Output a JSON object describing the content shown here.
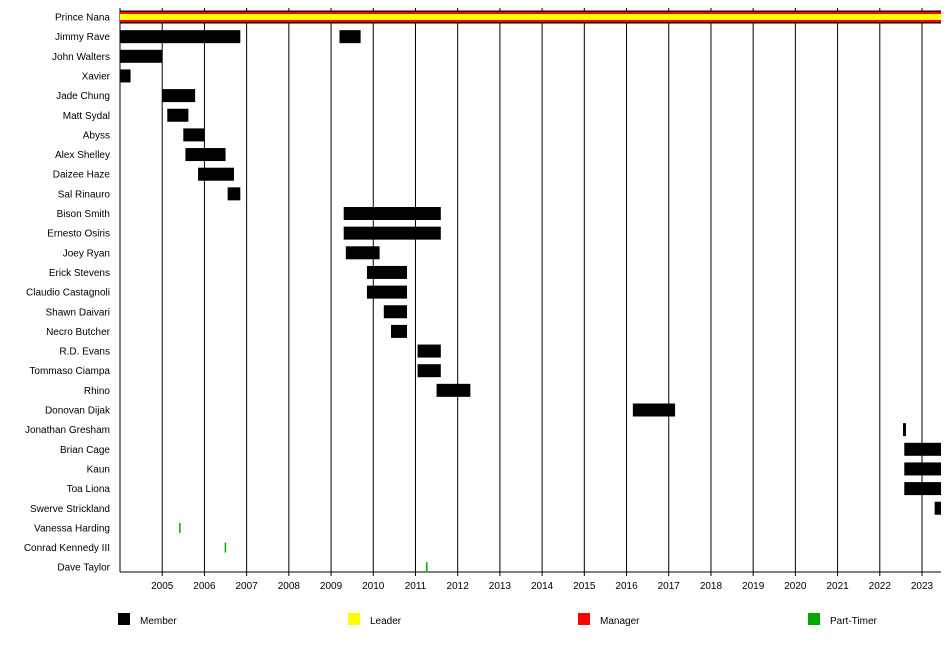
{
  "chart_data": {
    "type": "timeline",
    "xlim": [
      2004.0,
      2023.45
    ],
    "ticks": [
      "2005",
      "2006",
      "2007",
      "2008",
      "2009",
      "2010",
      "2011",
      "2012",
      "2013",
      "2014",
      "2015",
      "2016",
      "2017",
      "2018",
      "2019",
      "2020",
      "2021",
      "2022",
      "2023"
    ],
    "colors": {
      "Member": "#000000",
      "Leader": "#ffff00",
      "Manager": "#ff0000",
      "Part-Timer": "#00aa00"
    },
    "legend": [
      "Member",
      "Leader",
      "Manager",
      "Part-Timer"
    ],
    "rows": [
      {
        "name": "Prince Nana",
        "segments": [
          {
            "role": "Manager",
            "start": 2004.0,
            "end": 2023.45
          }
        ]
      },
      {
        "name": "Jimmy Rave",
        "segments": [
          {
            "role": "Member",
            "start": 2004.0,
            "end": 2006.85
          },
          {
            "role": "Member",
            "start": 2009.2,
            "end": 2009.7
          }
        ]
      },
      {
        "name": "John Walters",
        "segments": [
          {
            "role": "Member",
            "start": 2004.0,
            "end": 2005.0
          }
        ]
      },
      {
        "name": "Xavier",
        "segments": [
          {
            "role": "Member",
            "start": 2004.0,
            "end": 2004.25
          }
        ]
      },
      {
        "name": "Jade Chung",
        "segments": [
          {
            "role": "Member",
            "start": 2005.0,
            "end": 2005.78
          }
        ]
      },
      {
        "name": "Matt Sydal",
        "segments": [
          {
            "role": "Member",
            "start": 2005.12,
            "end": 2005.62
          }
        ]
      },
      {
        "name": "Abyss",
        "segments": [
          {
            "role": "Member",
            "start": 2005.5,
            "end": 2006.0
          }
        ]
      },
      {
        "name": "Alex Shelley",
        "segments": [
          {
            "role": "Member",
            "start": 2005.55,
            "end": 2006.5
          }
        ]
      },
      {
        "name": "Daizee Haze",
        "segments": [
          {
            "role": "Member",
            "start": 2005.85,
            "end": 2006.7
          }
        ]
      },
      {
        "name": "Sal Rinauro",
        "segments": [
          {
            "role": "Member",
            "start": 2006.55,
            "end": 2006.85
          }
        ]
      },
      {
        "name": "Bison Smith",
        "segments": [
          {
            "role": "Member",
            "start": 2009.3,
            "end": 2011.6
          }
        ]
      },
      {
        "name": "Ernesto Osiris",
        "segments": [
          {
            "role": "Member",
            "start": 2009.3,
            "end": 2011.6
          }
        ]
      },
      {
        "name": "Joey Ryan",
        "segments": [
          {
            "role": "Member",
            "start": 2009.35,
            "end": 2010.15
          }
        ]
      },
      {
        "name": "Erick Stevens",
        "segments": [
          {
            "role": "Member",
            "start": 2009.85,
            "end": 2010.8
          }
        ]
      },
      {
        "name": "Claudio Castagnoli",
        "segments": [
          {
            "role": "Member",
            "start": 2009.85,
            "end": 2010.8
          }
        ]
      },
      {
        "name": "Shawn Daivari",
        "segments": [
          {
            "role": "Member",
            "start": 2010.25,
            "end": 2010.8
          }
        ]
      },
      {
        "name": "Necro Butcher",
        "segments": [
          {
            "role": "Member",
            "start": 2010.42,
            "end": 2010.8
          }
        ]
      },
      {
        "name": "R.D. Evans",
        "segments": [
          {
            "role": "Member",
            "start": 2011.05,
            "end": 2011.6
          }
        ]
      },
      {
        "name": "Tommaso Ciampa",
        "segments": [
          {
            "role": "Member",
            "start": 2011.05,
            "end": 2011.6
          }
        ]
      },
      {
        "name": "Rhino",
        "segments": [
          {
            "role": "Member",
            "start": 2011.5,
            "end": 2012.3
          }
        ]
      },
      {
        "name": "Donovan Dijak",
        "segments": [
          {
            "role": "Member",
            "start": 2016.15,
            "end": 2017.15
          }
        ]
      },
      {
        "name": "Jonathan Gresham",
        "segments": [
          {
            "role": "Member",
            "start": 2022.55,
            "end": 2022.62
          }
        ]
      },
      {
        "name": "Brian Cage",
        "segments": [
          {
            "role": "Member",
            "start": 2022.58,
            "end": 2023.45
          }
        ]
      },
      {
        "name": "Kaun",
        "segments": [
          {
            "role": "Member",
            "start": 2022.58,
            "end": 2023.45
          }
        ]
      },
      {
        "name": "Toa Liona",
        "segments": [
          {
            "role": "Member",
            "start": 2022.58,
            "end": 2023.45
          }
        ]
      },
      {
        "name": "Swerve Strickland",
        "segments": [
          {
            "role": "Member",
            "start": 2023.3,
            "end": 2023.45
          }
        ]
      },
      {
        "name": "Vanessa Harding",
        "segments": [
          {
            "role": "Part-Timer",
            "start": 2005.4,
            "end": 2005.42
          }
        ]
      },
      {
        "name": "Conrad Kennedy III",
        "segments": [
          {
            "role": "Part-Timer",
            "start": 2006.48,
            "end": 2006.5
          }
        ]
      },
      {
        "name": "Dave Taylor",
        "segments": [
          {
            "role": "Part-Timer",
            "start": 2011.25,
            "end": 2011.27
          }
        ]
      }
    ],
    "leader_stripe": {
      "name": "Prince Nana",
      "role": "Leader",
      "start": 2004.0,
      "end": 2023.45
    }
  }
}
